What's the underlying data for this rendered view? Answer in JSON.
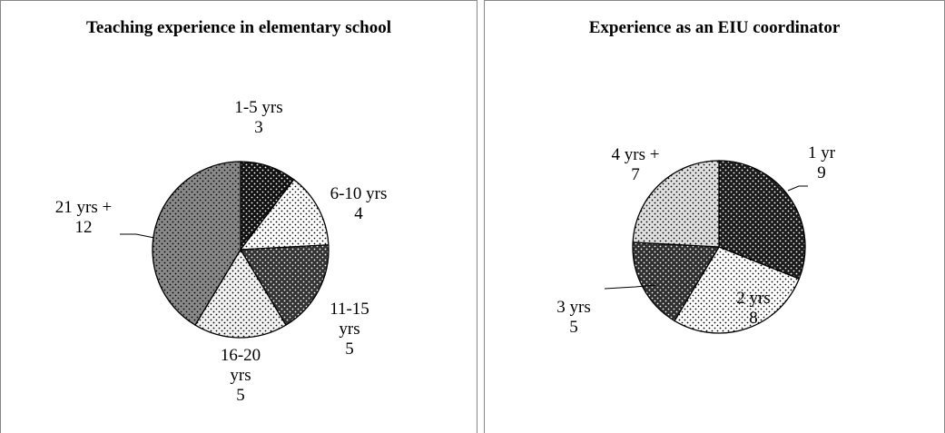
{
  "chart_data": [
    {
      "type": "pie",
      "title": "Teaching experience in elementary school",
      "categories": [
        "1-5 yrs",
        "6-10 yrs",
        "11-15 yrs",
        "16-20 yrs",
        "21 yrs +"
      ],
      "values": [
        3,
        4,
        5,
        5,
        12
      ],
      "colors": [
        "#111111",
        "#ffffff",
        "#333333",
        "#f4f4f4",
        "#8a8a8a"
      ]
    },
    {
      "type": "pie",
      "title": "Experience as an EIU coordinator",
      "categories": [
        "1 yr",
        "2 yrs",
        "3 yrs",
        "4 yrs +"
      ],
      "values": [
        9,
        8,
        5,
        7
      ],
      "colors": [
        "#1a1a1a",
        "#ffffff",
        "#2e2e2e",
        "#e0e0e0"
      ]
    }
  ]
}
